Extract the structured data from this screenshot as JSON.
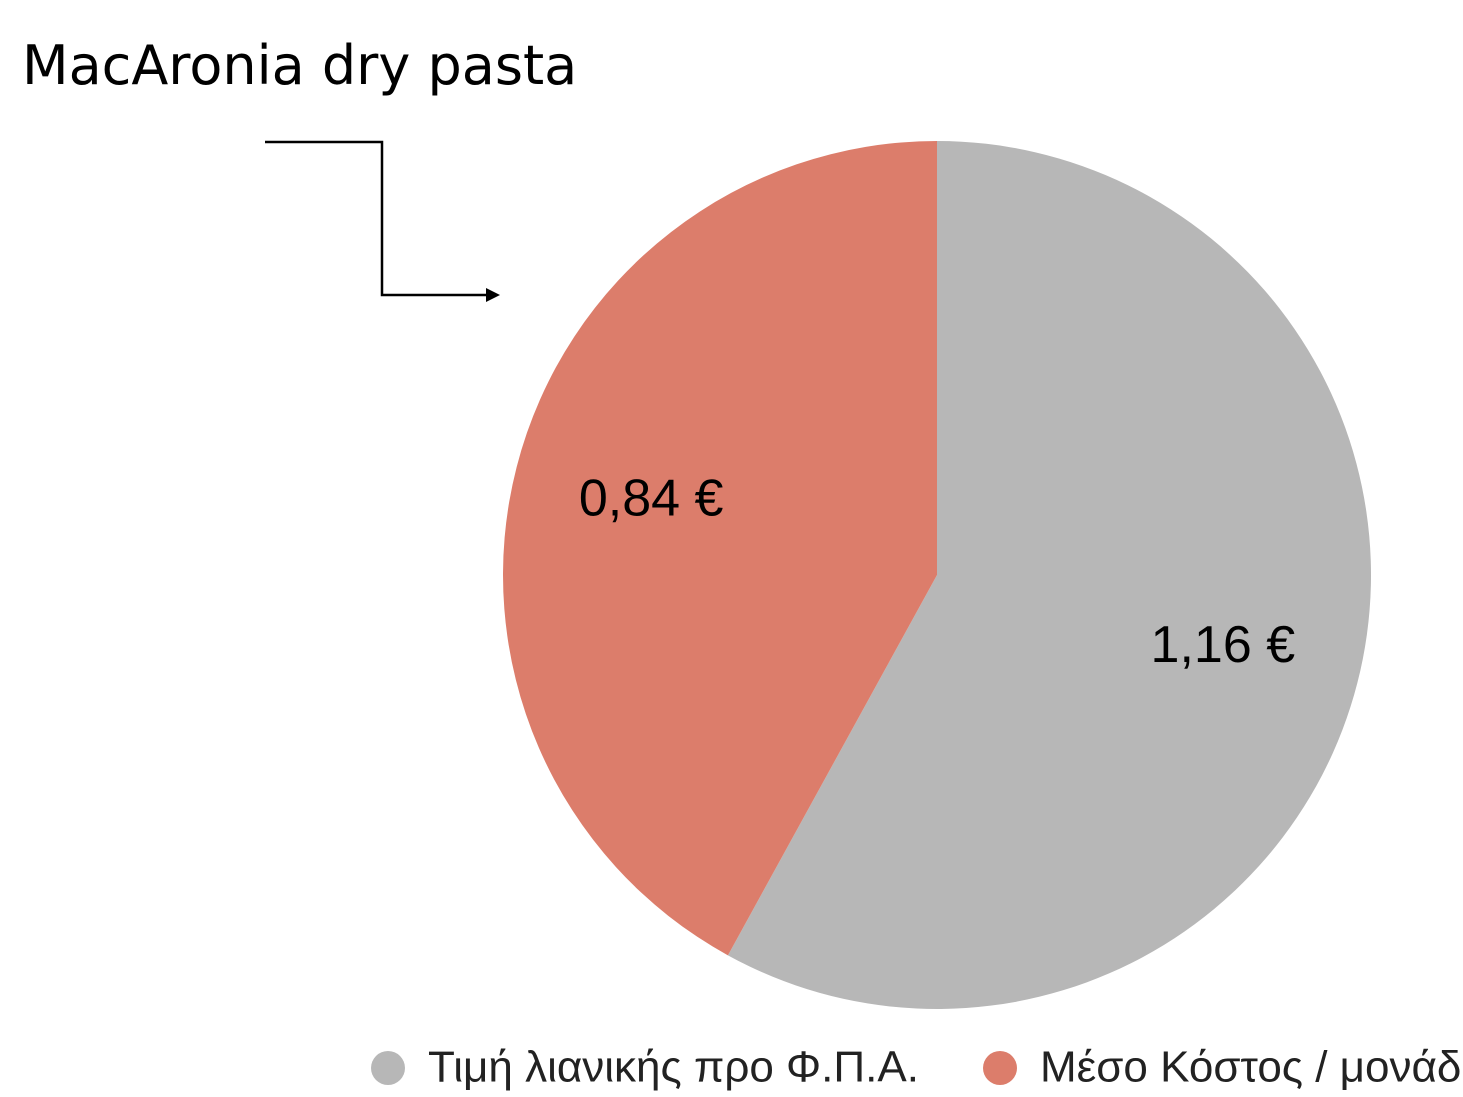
{
  "chart_data": {
    "type": "pie",
    "title": "MacAronia dry pasta",
    "categories": [
      "Τιμή λιανικής προ Φ.Π.Α.",
      "Μέσο Κόστος / μονάδα"
    ],
    "values": [
      1.16,
      0.84
    ],
    "value_labels": [
      "1,16 €",
      "0,84 €"
    ],
    "colors": [
      "#b7b7b7",
      "#dc7d6b"
    ],
    "legend": "bottom"
  }
}
